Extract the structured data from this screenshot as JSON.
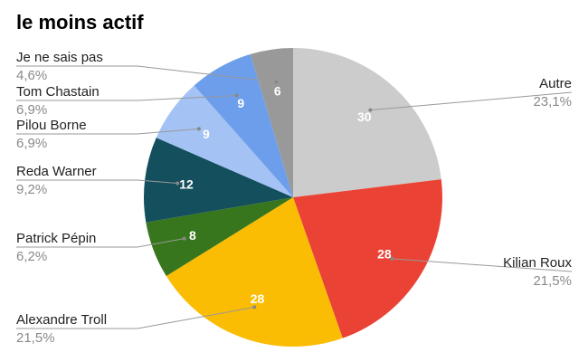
{
  "chart_data": {
    "type": "pie",
    "title": "le moins actif",
    "slices": [
      {
        "label": "Autre",
        "value": 30,
        "percent": "23,1%",
        "color": "#cccccc"
      },
      {
        "label": "Kilian Roux",
        "value": 28,
        "percent": "21,5%",
        "color": "#ea4335"
      },
      {
        "label": "Alexandre Troll",
        "value": 28,
        "percent": "21,5%",
        "color": "#fbbc04"
      },
      {
        "label": "Patrick Pépin",
        "value": 8,
        "percent": "6,2%",
        "color": "#38761d"
      },
      {
        "label": "Reda Warner",
        "value": 12,
        "percent": "9,2%",
        "color": "#134f5c"
      },
      {
        "label": "Pilou Borne",
        "value": 9,
        "percent": "6,9%",
        "color": "#a4c2f4"
      },
      {
        "label": "Tom Chastain",
        "value": 9,
        "percent": "6,9%",
        "color": "#6d9eeb"
      },
      {
        "label": "Je ne sais pas",
        "value": 6,
        "percent": "4,6%",
        "color": "#999999"
      }
    ]
  }
}
